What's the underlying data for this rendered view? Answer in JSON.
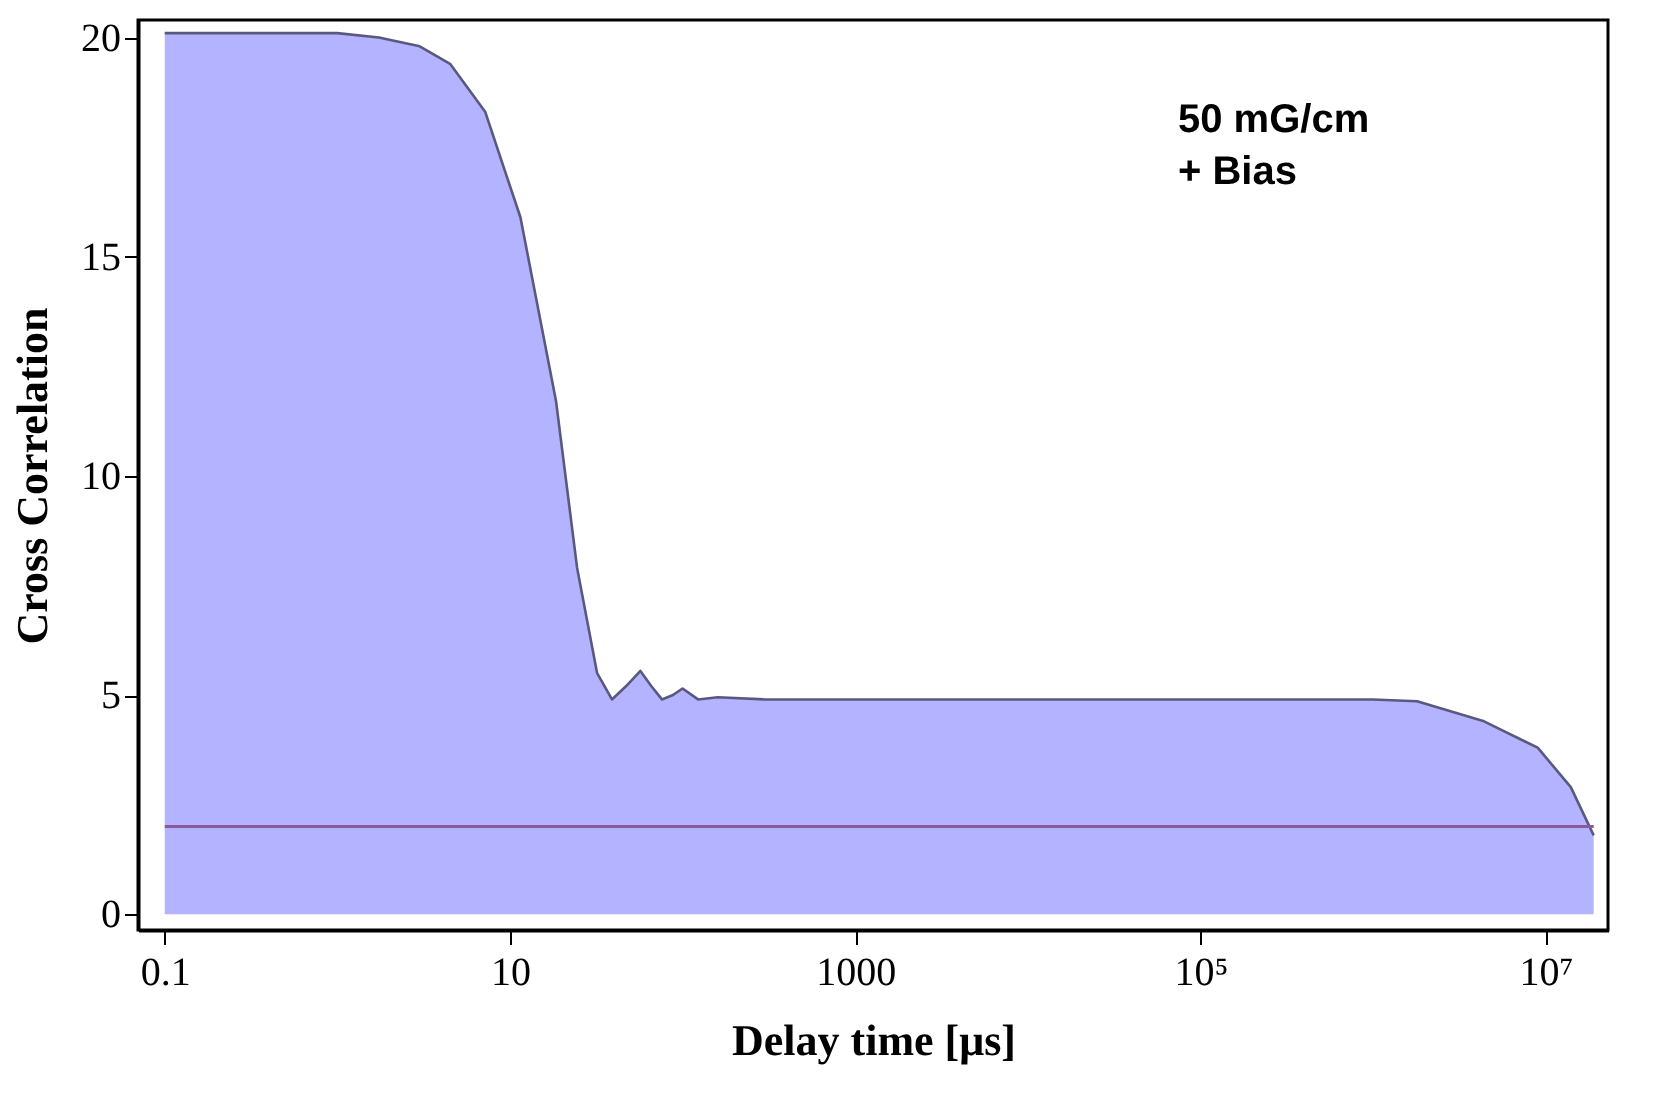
{
  "chart_data": {
    "type": "area",
    "xlabel": "Delay time [μs]",
    "ylabel": "Cross Correlation",
    "x": [
      0.1,
      0.5,
      1.0,
      1.74,
      3.0,
      4.5,
      7.2,
      11.5,
      18.5,
      24.5,
      32,
      39,
      47,
      57,
      66,
      76,
      88,
      100,
      123,
      160,
      300,
      1000,
      10000,
      100000,
      1000000,
      1800000,
      4400000,
      9000000,
      14000000,
      19000000
    ],
    "series": [
      {
        "color": "#b3b3ff",
        "values": [
          20.1,
          20.1,
          20.1,
          20.0,
          19.8,
          19.4,
          18.3,
          15.9,
          11.7,
          7.9,
          5.5,
          4.9,
          5.2,
          5.55,
          5.2,
          4.9,
          5.0,
          5.15,
          4.9,
          4.95,
          4.9,
          4.9,
          4.9,
          4.9,
          4.9,
          4.86,
          4.4,
          3.8,
          2.9,
          1.8
        ]
      }
    ],
    "ref_lines": [
      {
        "axis": "y",
        "value": 2,
        "color": "#8a5a9a"
      }
    ],
    "xlim": [
      0.07,
      23000000
    ],
    "ylim": [
      -0.36,
      20.4
    ],
    "xticks": [
      0.1,
      10,
      1000,
      {
        "value": 100000,
        "label": "10⁵"
      },
      {
        "value": 10000000,
        "label": "10⁷"
      }
    ],
    "yticks": [
      0,
      5,
      10,
      15,
      20
    ],
    "log": "x",
    "grid": false,
    "annotations": [
      "50 mG/cm\n+ Bias"
    ]
  }
}
